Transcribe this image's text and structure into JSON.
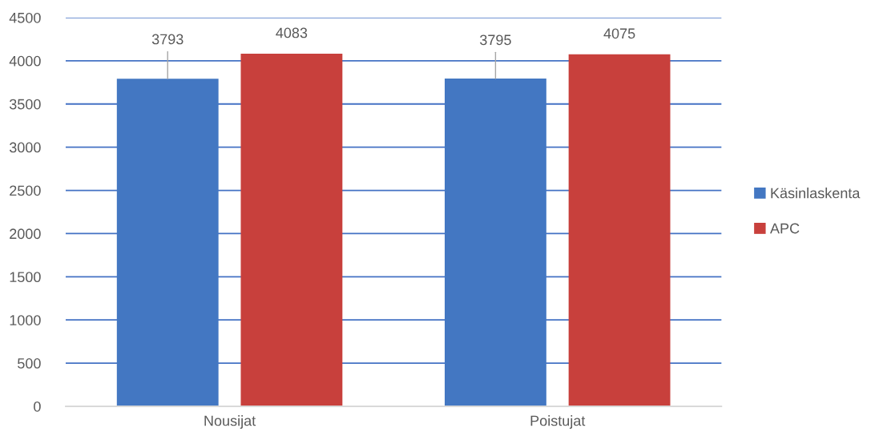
{
  "chart_data": {
    "type": "bar",
    "categories": [
      "Nousijat",
      "Poistujat"
    ],
    "series": [
      {
        "name": "Käsinlaskenta",
        "color": "#4377c2",
        "values": [
          3793,
          3795
        ]
      },
      {
        "name": "APC",
        "color": "#c8403c",
        "values": [
          4083,
          4075
        ]
      }
    ],
    "ylim": [
      0,
      4500
    ],
    "yticks": [
      0,
      500,
      1000,
      1500,
      2000,
      2500,
      3000,
      3500,
      4000,
      4500
    ],
    "grid": "y",
    "legend": "right",
    "data_labels": true
  }
}
